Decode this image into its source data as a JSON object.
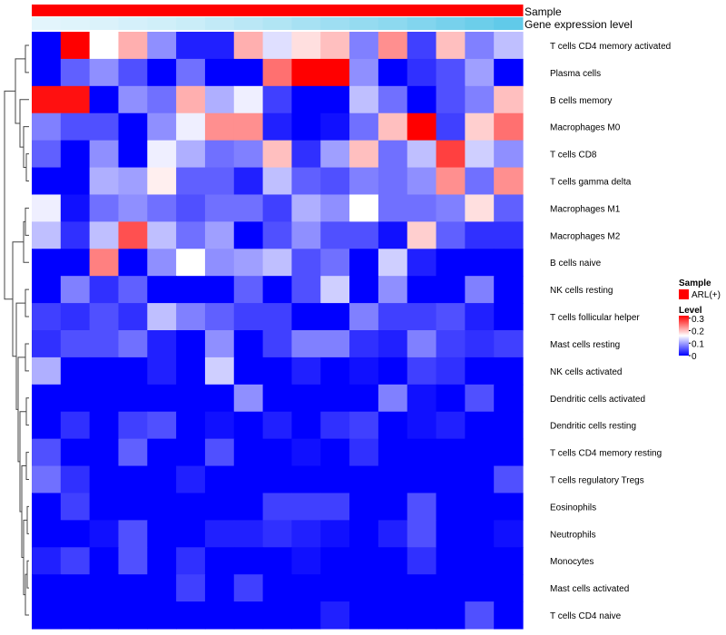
{
  "chart_data": {
    "type": "heatmap",
    "annotations": [
      {
        "name": "Sample",
        "kind": "categorical",
        "color": "#FF0000"
      },
      {
        "name": "Gene expression level",
        "kind": "continuous"
      }
    ],
    "gene_expression_level": [
      0.02,
      0.05,
      0.08,
      0.12,
      0.16,
      0.2,
      0.26,
      0.32,
      0.38,
      0.45,
      0.52,
      0.58,
      0.64,
      0.72,
      0.8,
      0.88,
      0.96
    ],
    "rows": [
      "T cells CD4 memory activated",
      "Plasma cells",
      "B cells memory",
      "Macrophages M0",
      "T cells CD8",
      "T cells gamma delta",
      "Macrophages M1",
      "Macrophages M2",
      "B cells naive",
      "NK cells resting",
      "T cells follicular helper",
      "Mast cells resting",
      "NK cells activated",
      "Dendritic cells activated",
      "Dendritic cells resting",
      "T cells CD4 memory resting",
      "T cells regulatory  Tregs",
      "Eosinophils",
      "Neutrophils",
      "Monocytes",
      "Mast cells activated",
      "T cells CD4 naive"
    ],
    "values": [
      [
        0.0,
        0.32,
        0.16,
        0.21,
        0.09,
        0.02,
        0.02,
        0.21,
        0.14,
        0.18,
        0.2,
        0.08,
        0.23,
        0.04,
        0.2,
        0.08,
        0.12
      ],
      [
        0.0,
        0.06,
        0.09,
        0.05,
        0.0,
        0.07,
        0.0,
        0.0,
        0.25,
        0.32,
        0.32,
        0.09,
        0.0,
        0.03,
        0.05,
        0.1,
        0.0
      ],
      [
        0.31,
        0.31,
        0.0,
        0.09,
        0.07,
        0.21,
        0.11,
        0.15,
        0.04,
        0.0,
        0.0,
        0.12,
        0.07,
        0.0,
        0.05,
        0.08,
        0.2
      ],
      [
        0.08,
        0.05,
        0.05,
        0.0,
        0.09,
        0.15,
        0.23,
        0.23,
        0.02,
        0.0,
        0.01,
        0.07,
        0.2,
        0.32,
        0.04,
        0.19,
        0.25
      ],
      [
        0.06,
        0.0,
        0.09,
        0.0,
        0.15,
        0.11,
        0.07,
        0.08,
        0.2,
        0.03,
        0.1,
        0.2,
        0.07,
        0.12,
        0.28,
        0.13,
        0.09
      ],
      [
        0.0,
        0.0,
        0.11,
        0.1,
        0.17,
        0.06,
        0.06,
        0.02,
        0.12,
        0.06,
        0.05,
        0.08,
        0.07,
        0.09,
        0.23,
        0.07,
        0.23
      ],
      [
        0.15,
        0.01,
        0.07,
        0.09,
        0.07,
        0.05,
        0.07,
        0.07,
        0.04,
        0.11,
        0.09,
        0.16,
        0.07,
        0.07,
        0.08,
        0.18,
        0.06
      ],
      [
        0.12,
        0.03,
        0.12,
        0.27,
        0.12,
        0.07,
        0.1,
        0.0,
        0.05,
        0.09,
        0.05,
        0.05,
        0.01,
        0.19,
        0.06,
        0.03,
        0.03
      ],
      [
        0.0,
        0.0,
        0.24,
        0.0,
        0.09,
        0.16,
        0.09,
        0.1,
        0.12,
        0.05,
        0.07,
        0.0,
        0.13,
        0.02,
        0.0,
        0.0,
        0.0
      ],
      [
        0.0,
        0.08,
        0.03,
        0.06,
        0.0,
        0.0,
        0.0,
        0.06,
        0.0,
        0.05,
        0.13,
        0.0,
        0.09,
        0.0,
        0.0,
        0.08,
        0.0
      ],
      [
        0.04,
        0.03,
        0.05,
        0.03,
        0.12,
        0.08,
        0.06,
        0.04,
        0.04,
        0.0,
        0.0,
        0.08,
        0.04,
        0.04,
        0.05,
        0.02,
        0.0
      ],
      [
        0.03,
        0.05,
        0.05,
        0.07,
        0.02,
        0.0,
        0.09,
        0.0,
        0.04,
        0.08,
        0.08,
        0.03,
        0.02,
        0.08,
        0.04,
        0.03,
        0.04
      ],
      [
        0.11,
        0.0,
        0.0,
        0.0,
        0.02,
        0.0,
        0.13,
        0.0,
        0.0,
        0.02,
        0.0,
        0.01,
        0.0,
        0.04,
        0.03,
        0.0,
        0.0
      ],
      [
        0.0,
        0.0,
        0.0,
        0.0,
        0.0,
        0.0,
        0.0,
        0.09,
        0.0,
        0.0,
        0.0,
        0.0,
        0.08,
        0.01,
        0.0,
        0.05,
        0.0
      ],
      [
        0.0,
        0.03,
        0.0,
        0.04,
        0.05,
        0.0,
        0.01,
        0.0,
        0.02,
        0.0,
        0.03,
        0.04,
        0.0,
        0.01,
        0.02,
        0.0,
        0.0
      ],
      [
        0.05,
        0.0,
        0.0,
        0.06,
        0.0,
        0.0,
        0.05,
        0.0,
        0.0,
        0.01,
        0.0,
        0.03,
        0.0,
        0.0,
        0.0,
        0.0,
        0.0
      ],
      [
        0.07,
        0.03,
        0.0,
        0.0,
        0.0,
        0.02,
        0.0,
        0.0,
        0.0,
        0.0,
        0.0,
        0.0,
        0.0,
        0.0,
        0.0,
        0.0,
        0.05
      ],
      [
        0.0,
        0.04,
        0.0,
        0.0,
        0.0,
        0.0,
        0.0,
        0.0,
        0.04,
        0.04,
        0.04,
        0.0,
        0.0,
        0.05,
        0.0,
        0.0,
        0.0
      ],
      [
        0.0,
        0.0,
        0.01,
        0.05,
        0.0,
        0.0,
        0.02,
        0.02,
        0.03,
        0.02,
        0.01,
        0.0,
        0.02,
        0.05,
        0.0,
        0.0,
        0.01
      ],
      [
        0.02,
        0.04,
        0.0,
        0.05,
        0.0,
        0.03,
        0.0,
        0.0,
        0.0,
        0.01,
        0.0,
        0.0,
        0.0,
        0.03,
        0.0,
        0.0,
        0.0
      ],
      [
        0.0,
        0.0,
        0.0,
        0.0,
        0.0,
        0.04,
        0.0,
        0.04,
        0.0,
        0.0,
        0.0,
        0.0,
        0.0,
        0.0,
        0.0,
        0.0,
        0.0
      ],
      [
        0.0,
        0.0,
        0.0,
        0.0,
        0.0,
        0.0,
        0.0,
        0.0,
        0.0,
        0.0,
        0.02,
        0.0,
        0.0,
        0.0,
        0.0,
        0.05,
        0.0
      ]
    ],
    "color_scale": {
      "min": 0,
      "mid": 0.16,
      "max": 0.32,
      "low": "#0000FF",
      "mid_color": "#FFFFFF",
      "high": "#FF0000"
    },
    "row_dendrogram": true,
    "legend": {
      "position": "right",
      "sample_title": "Sample",
      "sample_entry": "ARL(+)",
      "level_title": "Level",
      "level_ticks": [
        {
          "value": 0.3,
          "label": "0.3"
        },
        {
          "value": 0.2,
          "label": "0.2"
        },
        {
          "value": 0.1,
          "label": "0.1"
        },
        {
          "value": 0,
          "label": "0"
        }
      ]
    }
  },
  "colors": {
    "sample_annotation": "#FF0000",
    "expression_low": "#E6F6FC",
    "expression_high": "#5BC8E8"
  }
}
